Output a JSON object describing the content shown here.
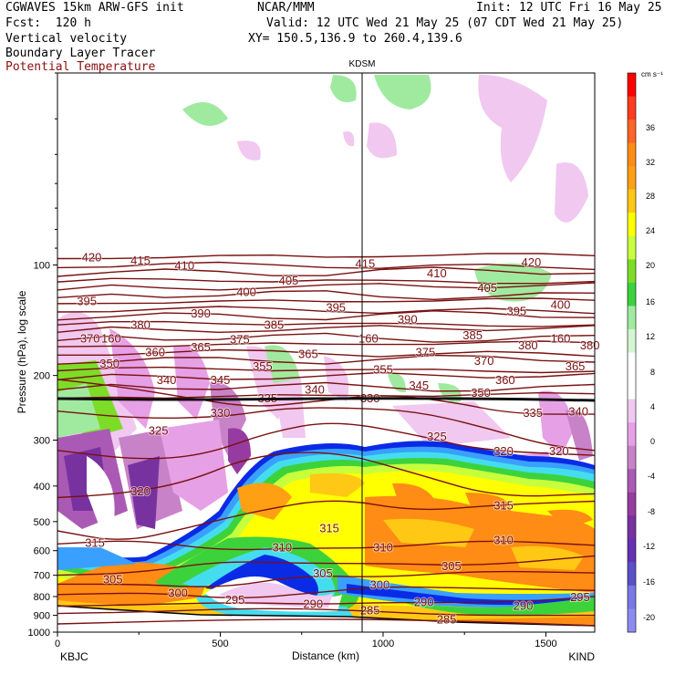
{
  "header": {
    "model": "CGWAVES 15km ARW-GFS init",
    "fcst": "Fcst:  120 h",
    "org": "NCAR/MMM",
    "init": "Init: 12 UTC Fri 16 May 25",
    "valid": "Valid: 12 UTC Wed 21 May 25 (07 CDT Wed 21 May 25)",
    "xy": "XY= 150.5,136.9 to 260.4,139.6",
    "field1": "Vertical velocity",
    "field2": "Boundary Layer Tracer",
    "field3": "Potential Temperature"
  },
  "station_marker": "KDSM",
  "colors": {
    "theta_contour": "#7a1010",
    "tropopause": "#111111",
    "accent_red": "#8b1010"
  },
  "chart_data": {
    "type": "heatmap",
    "xlabel": "Distance (km)",
    "ylabel": "Pressure (hPa), log scale",
    "xlim": [
      0,
      1650
    ],
    "x_ticks": [
      "0",
      "500",
      "1000",
      "1500"
    ],
    "x_tick_values": [
      0,
      500,
      1000,
      1500
    ],
    "y_log_scale": true,
    "ylim": [
      1000,
      30
    ],
    "y_ticks": [
      "100",
      "200",
      "300",
      "400",
      "500",
      "600",
      "700",
      "800",
      "900",
      "1000"
    ],
    "y_tick_values": [
      100,
      200,
      300,
      400,
      500,
      600,
      700,
      800,
      900,
      1000
    ],
    "left_endpoint": "KBJC",
    "right_endpoint": "KIND",
    "marker_x_km": 935,
    "colorbar": {
      "unit": "cm s⁻¹",
      "labels": [
        "36",
        "32",
        "28",
        "24",
        "20",
        "16",
        "12",
        "8",
        "4",
        "0",
        "-4",
        "-8",
        "-12",
        "-16",
        "-20"
      ],
      "colors": [
        "#ff0000",
        "#ff3c1e",
        "#ff6428",
        "#ff8c14",
        "#ffa014",
        "#ffc814",
        "#ffff00",
        "#c8ff3c",
        "#7ddc28",
        "#3cd23c",
        "#a0eaa0",
        "#d2f5d2",
        "#ffffff",
        "#ffffff",
        "#f0c8f0",
        "#e6a0e6",
        "#c882c8",
        "#aa5ab4",
        "#963ca0",
        "#7832a0",
        "#6432b4",
        "#5a50c8",
        "#7878e6",
        "#8c8cf0"
      ]
    },
    "theta_contour_labels": [
      {
        "v": "420",
        "x": 105,
        "p": 95
      },
      {
        "v": "415",
        "x": 255,
        "p": 97
      },
      {
        "v": "410",
        "x": 390,
        "p": 100
      },
      {
        "v": "405",
        "x": 710,
        "p": 110
      },
      {
        "v": "415",
        "x": 945,
        "p": 99
      },
      {
        "v": "410",
        "x": 1165,
        "p": 105
      },
      {
        "v": "405",
        "x": 1320,
        "p": 115
      },
      {
        "v": "420",
        "x": 1455,
        "p": 98
      },
      {
        "v": "395",
        "x": 90,
        "p": 125
      },
      {
        "v": "400",
        "x": 580,
        "p": 118
      },
      {
        "v": "390",
        "x": 440,
        "p": 135
      },
      {
        "v": "385",
        "x": 665,
        "p": 145
      },
      {
        "v": "395",
        "x": 855,
        "p": 130
      },
      {
        "v": "390",
        "x": 1075,
        "p": 140
      },
      {
        "v": "395",
        "x": 1410,
        "p": 133
      },
      {
        "v": "400",
        "x": 1545,
        "p": 128
      },
      {
        "v": "380",
        "x": 255,
        "p": 145
      },
      {
        "v": "385",
        "x": 1275,
        "p": 155
      },
      {
        "v": "370",
        "x": 100,
        "p": 158
      },
      {
        "v": "160",
        "x": 165,
        "p": 158
      },
      {
        "v": "375",
        "x": 560,
        "p": 159
      },
      {
        "v": "160",
        "x": 955,
        "p": 158
      },
      {
        "v": "160",
        "x": 1545,
        "p": 158
      },
      {
        "v": "365",
        "x": 440,
        "p": 167
      },
      {
        "v": "360",
        "x": 300,
        "p": 172
      },
      {
        "v": "365",
        "x": 770,
        "p": 174
      },
      {
        "v": "375",
        "x": 1130,
        "p": 172
      },
      {
        "v": "380",
        "x": 1445,
        "p": 165
      },
      {
        "v": "380",
        "x": 1635,
        "p": 165
      },
      {
        "v": "350",
        "x": 160,
        "p": 185
      },
      {
        "v": "355",
        "x": 630,
        "p": 188
      },
      {
        "v": "355",
        "x": 1000,
        "p": 192
      },
      {
        "v": "370",
        "x": 1310,
        "p": 182
      },
      {
        "v": "365",
        "x": 1590,
        "p": 188
      },
      {
        "v": "340",
        "x": 335,
        "p": 205
      },
      {
        "v": "345",
        "x": 500,
        "p": 205
      },
      {
        "v": "360",
        "x": 1375,
        "p": 205
      },
      {
        "v": "345",
        "x": 1110,
        "p": 212
      },
      {
        "v": "340",
        "x": 790,
        "p": 218
      },
      {
        "v": "350",
        "x": 1300,
        "p": 222
      },
      {
        "v": "330",
        "x": 500,
        "p": 252
      },
      {
        "v": "335",
        "x": 645,
        "p": 230
      },
      {
        "v": "330",
        "x": 960,
        "p": 230
      },
      {
        "v": "335",
        "x": 1460,
        "p": 252
      },
      {
        "v": "340",
        "x": 1600,
        "p": 250
      },
      {
        "v": "325",
        "x": 310,
        "p": 282
      },
      {
        "v": "325",
        "x": 1165,
        "p": 292
      },
      {
        "v": "320",
        "x": 1370,
        "p": 320
      },
      {
        "v": "320",
        "x": 1540,
        "p": 320
      },
      {
        "v": "320",
        "x": 255,
        "p": 412
      },
      {
        "v": "315",
        "x": 1370,
        "p": 450
      },
      {
        "v": "315",
        "x": 115,
        "p": 570
      },
      {
        "v": "315",
        "x": 835,
        "p": 520
      },
      {
        "v": "310",
        "x": 690,
        "p": 585
      },
      {
        "v": "310",
        "x": 1000,
        "p": 585
      },
      {
        "v": "310",
        "x": 1370,
        "p": 560
      },
      {
        "v": "305",
        "x": 1210,
        "p": 658
      },
      {
        "v": "305",
        "x": 170,
        "p": 715
      },
      {
        "v": "305",
        "x": 815,
        "p": 690
      },
      {
        "v": "300",
        "x": 370,
        "p": 780
      },
      {
        "v": "300",
        "x": 990,
        "p": 740
      },
      {
        "v": "295",
        "x": 545,
        "p": 815
      },
      {
        "v": "290",
        "x": 785,
        "p": 835
      },
      {
        "v": "290",
        "x": 1125,
        "p": 825
      },
      {
        "v": "285",
        "x": 960,
        "p": 870
      },
      {
        "v": "290",
        "x": 1430,
        "p": 845
      },
      {
        "v": "295",
        "x": 1605,
        "p": 800
      },
      {
        "v": "285",
        "x": 1195,
        "p": 920
      }
    ]
  }
}
